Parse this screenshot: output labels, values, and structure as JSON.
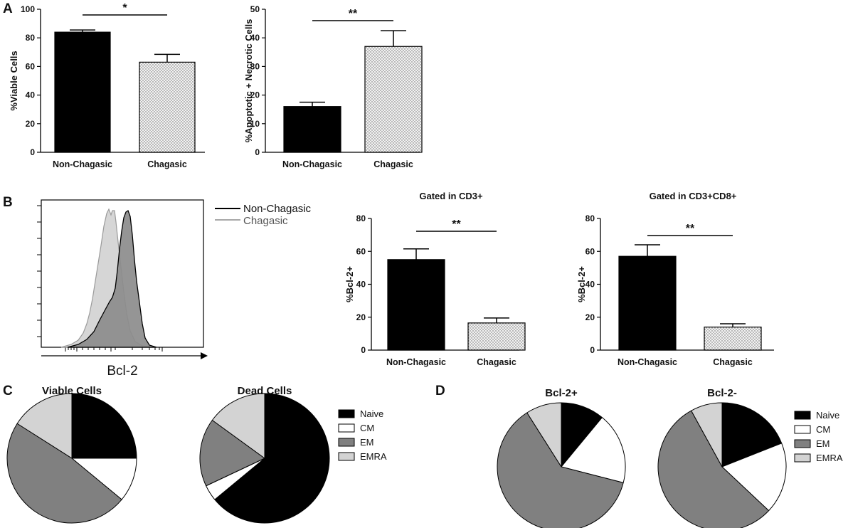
{
  "panel_labels": {
    "a": "A",
    "b": "B",
    "c": "C",
    "d": "D"
  },
  "colors": {
    "non_chagasic": "#000000",
    "chagasic_fill": "#ebebeb",
    "naive": "#000000",
    "cm": "#ffffff",
    "em": "#808080",
    "emra": "#d3d3d3"
  },
  "chart_data": [
    {
      "id": "A1",
      "type": "bar",
      "title": "",
      "xlabel": "",
      "ylabel": "%Viable Cells",
      "ylim": [
        0,
        100
      ],
      "yticks": [
        "0",
        "20",
        "40",
        "60",
        "80",
        "100"
      ],
      "categories": [
        "Non-Chagasic",
        "Chagasic"
      ],
      "values": [
        84,
        63
      ],
      "errors": [
        1.5,
        5.5
      ],
      "annotation": {
        "text": "*",
        "between": [
          0,
          1
        ]
      }
    },
    {
      "id": "A2",
      "type": "bar",
      "title": "",
      "xlabel": "",
      "ylabel": "%Apoptotic + Necrotic Cells",
      "ylim": [
        0,
        50
      ],
      "yticks": [
        "0",
        "10",
        "20",
        "30",
        "40",
        "50"
      ],
      "categories": [
        "Non-Chagasic",
        "Chagasic"
      ],
      "values": [
        16,
        37
      ],
      "errors": [
        1.5,
        5.5
      ],
      "annotation": {
        "text": "**",
        "between": [
          0,
          1
        ]
      }
    },
    {
      "id": "B2",
      "type": "bar",
      "title": "Gated in CD3+",
      "xlabel": "",
      "ylabel": "%Bcl-2+",
      "ylim": [
        0,
        80
      ],
      "yticks": [
        "0",
        "20",
        "40",
        "60",
        "80"
      ],
      "categories": [
        "Non-Chagasic",
        "Chagasic"
      ],
      "values": [
        55,
        16.5
      ],
      "errors": [
        6.5,
        3
      ],
      "annotation": {
        "text": "**",
        "between": [
          0,
          1
        ]
      }
    },
    {
      "id": "B3",
      "type": "bar",
      "title": "Gated in CD3+CD8+",
      "xlabel": "",
      "ylabel": "%Bcl-2+",
      "ylim": [
        0,
        80
      ],
      "yticks": [
        "0",
        "20",
        "40",
        "60",
        "80"
      ],
      "categories": [
        "Non-Chagasic",
        "Chagasic"
      ],
      "values": [
        57,
        14
      ],
      "errors": [
        7,
        2
      ],
      "annotation": {
        "text": "**",
        "between": [
          0,
          1
        ]
      }
    },
    {
      "id": "B1",
      "type": "histogram",
      "xlabel": "Bcl-2",
      "legend": [
        "Non-Chagasic",
        "Chagasic"
      ]
    },
    {
      "id": "C1",
      "type": "pie",
      "title": "Viable Cells",
      "labels": [
        "Naive",
        "CM",
        "EM",
        "EMRA"
      ],
      "values": [
        25,
        11,
        48,
        16
      ]
    },
    {
      "id": "C2",
      "type": "pie",
      "title": "Dead Cells",
      "labels": [
        "Naive",
        "CM",
        "EM",
        "EMRA"
      ],
      "values": [
        64,
        4,
        17,
        15
      ]
    },
    {
      "id": "D1",
      "type": "pie",
      "title": "Bcl-2+",
      "labels": [
        "Naive",
        "CM",
        "EM",
        "EMRA"
      ],
      "values": [
        11,
        18,
        62,
        9
      ]
    },
    {
      "id": "D2",
      "type": "pie",
      "title": "Bcl-2-",
      "labels": [
        "Naive",
        "CM",
        "EM",
        "EMRA"
      ],
      "values": [
        19,
        18,
        55,
        8
      ]
    }
  ],
  "legend_cd": {
    "labels": [
      "Naive",
      "CM",
      "EM",
      "EMRA"
    ]
  }
}
